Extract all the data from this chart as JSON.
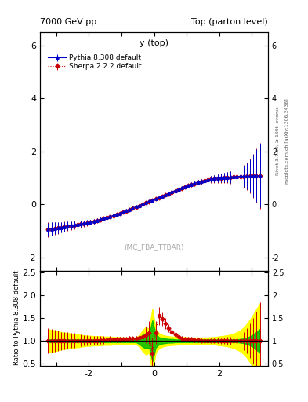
{
  "title_left": "7000 GeV pp",
  "title_right": "Top (parton level)",
  "main_xlabel": "y (top)",
  "ratio_ylabel": "Ratio to Pythia 8.308 default",
  "watermark": "(MC_FBA_TTBAR)",
  "right_label1": "Rivet 3.1.10, ≥ 100k events",
  "right_label2": "mcplots.cern.ch [arXiv:1306.3436]",
  "main_ylim": [
    -2.5,
    6.5
  ],
  "ratio_ylim": [
    0.45,
    2.55
  ],
  "xlim": [
    -3.5,
    3.5
  ],
  "main_yticks": [
    -2,
    0,
    2,
    4,
    6
  ],
  "ratio_yticks": [
    0.5,
    1.0,
    1.5,
    2.0,
    2.5
  ],
  "xticks": [
    -2,
    0,
    2
  ],
  "legend1": "Pythia 8.308 default",
  "legend2": "Sherpa 2.2.2 default",
  "color_pythia": "#0000cc",
  "color_sherpa": "#cc0000",
  "color_green_band": "#00bb00",
  "color_yellow_band": "#ffff00",
  "bg_color": "#ffffff",
  "x_values": [
    -3.25,
    -3.15,
    -3.05,
    -2.95,
    -2.85,
    -2.75,
    -2.65,
    -2.55,
    -2.45,
    -2.35,
    -2.25,
    -2.15,
    -2.05,
    -1.95,
    -1.85,
    -1.75,
    -1.65,
    -1.55,
    -1.45,
    -1.35,
    -1.25,
    -1.15,
    -1.05,
    -0.95,
    -0.85,
    -0.75,
    -0.65,
    -0.55,
    -0.45,
    -0.35,
    -0.25,
    -0.15,
    -0.05,
    0.05,
    0.15,
    0.25,
    0.35,
    0.45,
    0.55,
    0.65,
    0.75,
    0.85,
    0.95,
    1.05,
    1.15,
    1.25,
    1.35,
    1.45,
    1.55,
    1.65,
    1.75,
    1.85,
    1.95,
    2.05,
    2.15,
    2.25,
    2.35,
    2.45,
    2.55,
    2.65,
    2.75,
    2.85,
    2.95,
    3.05,
    3.15,
    3.25
  ],
  "pythia_y": [
    -0.95,
    -0.93,
    -0.91,
    -0.89,
    -0.87,
    -0.85,
    -0.82,
    -0.8,
    -0.78,
    -0.76,
    -0.74,
    -0.72,
    -0.7,
    -0.67,
    -0.64,
    -0.61,
    -0.57,
    -0.53,
    -0.5,
    -0.46,
    -0.42,
    -0.38,
    -0.34,
    -0.29,
    -0.24,
    -0.19,
    -0.14,
    -0.09,
    -0.04,
    0.01,
    0.06,
    0.11,
    0.16,
    0.21,
    0.26,
    0.31,
    0.36,
    0.41,
    0.47,
    0.52,
    0.57,
    0.62,
    0.67,
    0.72,
    0.76,
    0.8,
    0.84,
    0.87,
    0.9,
    0.92,
    0.95,
    0.97,
    0.99,
    1.0,
    1.01,
    1.02,
    1.03,
    1.04,
    1.05,
    1.06,
    1.06,
    1.06,
    1.07,
    1.07,
    1.08,
    1.08
  ],
  "pythia_err": [
    0.25,
    0.24,
    0.22,
    0.2,
    0.18,
    0.17,
    0.16,
    0.15,
    0.14,
    0.13,
    0.12,
    0.11,
    0.1,
    0.09,
    0.09,
    0.08,
    0.08,
    0.07,
    0.07,
    0.06,
    0.06,
    0.06,
    0.05,
    0.05,
    0.05,
    0.05,
    0.04,
    0.04,
    0.04,
    0.04,
    0.04,
    0.04,
    0.04,
    0.04,
    0.04,
    0.04,
    0.04,
    0.05,
    0.05,
    0.05,
    0.06,
    0.06,
    0.06,
    0.07,
    0.07,
    0.08,
    0.08,
    0.09,
    0.1,
    0.11,
    0.12,
    0.13,
    0.14,
    0.16,
    0.17,
    0.19,
    0.21,
    0.24,
    0.28,
    0.33,
    0.4,
    0.5,
    0.62,
    0.8,
    1.0,
    1.2
  ],
  "sherpa_y": [
    -0.95,
    -0.93,
    -0.91,
    -0.89,
    -0.87,
    -0.85,
    -0.83,
    -0.81,
    -0.79,
    -0.77,
    -0.75,
    -0.73,
    -0.71,
    -0.68,
    -0.65,
    -0.62,
    -0.58,
    -0.54,
    -0.51,
    -0.47,
    -0.43,
    -0.39,
    -0.35,
    -0.3,
    -0.25,
    -0.2,
    -0.15,
    -0.1,
    -0.05,
    0.0,
    0.05,
    0.1,
    0.15,
    0.2,
    0.25,
    0.3,
    0.35,
    0.4,
    0.46,
    0.51,
    0.56,
    0.61,
    0.66,
    0.71,
    0.75,
    0.79,
    0.83,
    0.86,
    0.89,
    0.91,
    0.94,
    0.96,
    0.98,
    0.99,
    1.0,
    1.01,
    1.02,
    1.03,
    1.04,
    1.05,
    1.05,
    1.06,
    1.07,
    1.07,
    1.08,
    1.08
  ],
  "sherpa_err": [
    0.28,
    0.26,
    0.24,
    0.22,
    0.2,
    0.19,
    0.18,
    0.17,
    0.16,
    0.14,
    0.13,
    0.12,
    0.11,
    0.1,
    0.09,
    0.09,
    0.08,
    0.08,
    0.07,
    0.07,
    0.06,
    0.06,
    0.06,
    0.05,
    0.05,
    0.05,
    0.04,
    0.04,
    0.04,
    0.04,
    0.04,
    0.04,
    0.04,
    0.04,
    0.04,
    0.04,
    0.05,
    0.05,
    0.05,
    0.06,
    0.06,
    0.06,
    0.07,
    0.07,
    0.08,
    0.09,
    0.09,
    0.1,
    0.11,
    0.12,
    0.13,
    0.14,
    0.16,
    0.17,
    0.19,
    0.21,
    0.23,
    0.26,
    0.3,
    0.36,
    0.43,
    0.52,
    0.65,
    0.82,
    1.02,
    1.25
  ],
  "ratio_y": [
    1.0,
    1.0,
    1.0,
    1.0,
    1.0,
    1.0,
    1.01,
    1.01,
    1.01,
    1.01,
    1.01,
    1.01,
    1.01,
    1.01,
    1.01,
    1.01,
    1.02,
    1.02,
    1.02,
    1.03,
    1.03,
    1.03,
    1.03,
    1.04,
    1.04,
    1.05,
    1.05,
    1.06,
    1.07,
    1.09,
    1.13,
    1.18,
    0.72,
    1.18,
    1.55,
    1.48,
    1.38,
    1.28,
    1.2,
    1.14,
    1.09,
    1.06,
    1.04,
    1.03,
    1.03,
    1.02,
    1.02,
    1.01,
    1.01,
    1.01,
    1.01,
    1.01,
    1.01,
    1.0,
    1.0,
    1.0,
    1.0,
    1.0,
    1.0,
    1.0,
    1.0,
    1.0,
    1.0,
    1.0,
    1.0,
    1.0
  ],
  "ratio_err": [
    0.28,
    0.26,
    0.24,
    0.22,
    0.2,
    0.19,
    0.18,
    0.17,
    0.16,
    0.14,
    0.13,
    0.12,
    0.11,
    0.1,
    0.09,
    0.09,
    0.08,
    0.08,
    0.07,
    0.07,
    0.06,
    0.06,
    0.06,
    0.05,
    0.05,
    0.05,
    0.04,
    0.04,
    0.08,
    0.12,
    0.18,
    0.25,
    0.35,
    0.25,
    0.2,
    0.15,
    0.12,
    0.09,
    0.07,
    0.06,
    0.06,
    0.05,
    0.05,
    0.05,
    0.05,
    0.05,
    0.05,
    0.05,
    0.05,
    0.05,
    0.05,
    0.05,
    0.06,
    0.06,
    0.07,
    0.08,
    0.09,
    0.1,
    0.12,
    0.15,
    0.2,
    0.28,
    0.38,
    0.5,
    0.65,
    0.85
  ],
  "green_band_lo": [
    0.97,
    0.97,
    0.97,
    0.97,
    0.97,
    0.97,
    0.97,
    0.97,
    0.97,
    0.97,
    0.97,
    0.97,
    0.97,
    0.97,
    0.97,
    0.97,
    0.97,
    0.97,
    0.97,
    0.97,
    0.97,
    0.97,
    0.97,
    0.97,
    0.97,
    0.97,
    0.97,
    0.97,
    0.93,
    0.87,
    0.83,
    0.85,
    0.55,
    0.85,
    0.92,
    0.94,
    0.95,
    0.96,
    0.96,
    0.97,
    0.97,
    0.97,
    0.97,
    0.97,
    0.97,
    0.97,
    0.97,
    0.97,
    0.97,
    0.97,
    0.97,
    0.97,
    0.97,
    0.97,
    0.97,
    0.97,
    0.97,
    0.97,
    0.97,
    0.96,
    0.95,
    0.93,
    0.9,
    0.86,
    0.8,
    0.74
  ],
  "green_band_hi": [
    1.03,
    1.03,
    1.03,
    1.03,
    1.03,
    1.03,
    1.03,
    1.03,
    1.03,
    1.03,
    1.03,
    1.03,
    1.03,
    1.03,
    1.03,
    1.03,
    1.03,
    1.03,
    1.03,
    1.03,
    1.03,
    1.03,
    1.03,
    1.03,
    1.03,
    1.03,
    1.03,
    1.03,
    1.07,
    1.13,
    1.17,
    1.15,
    1.45,
    1.15,
    1.08,
    1.06,
    1.05,
    1.04,
    1.04,
    1.03,
    1.03,
    1.03,
    1.03,
    1.03,
    1.03,
    1.03,
    1.03,
    1.03,
    1.03,
    1.03,
    1.03,
    1.03,
    1.03,
    1.03,
    1.03,
    1.03,
    1.03,
    1.03,
    1.03,
    1.04,
    1.05,
    1.07,
    1.1,
    1.14,
    1.2,
    1.26
  ],
  "yellow_band_lo": [
    0.75,
    0.76,
    0.77,
    0.79,
    0.81,
    0.82,
    0.83,
    0.84,
    0.85,
    0.86,
    0.87,
    0.88,
    0.89,
    0.89,
    0.9,
    0.9,
    0.9,
    0.91,
    0.91,
    0.91,
    0.92,
    0.92,
    0.92,
    0.93,
    0.93,
    0.93,
    0.93,
    0.93,
    0.87,
    0.77,
    0.7,
    0.74,
    0.3,
    0.74,
    0.83,
    0.87,
    0.89,
    0.9,
    0.91,
    0.91,
    0.92,
    0.92,
    0.92,
    0.93,
    0.93,
    0.93,
    0.93,
    0.93,
    0.93,
    0.93,
    0.92,
    0.92,
    0.91,
    0.9,
    0.89,
    0.88,
    0.86,
    0.84,
    0.81,
    0.77,
    0.71,
    0.63,
    0.53,
    0.42,
    0.3,
    0.18
  ],
  "yellow_band_hi": [
    1.25,
    1.24,
    1.23,
    1.21,
    1.19,
    1.18,
    1.17,
    1.16,
    1.15,
    1.14,
    1.13,
    1.12,
    1.11,
    1.11,
    1.1,
    1.1,
    1.1,
    1.09,
    1.09,
    1.09,
    1.08,
    1.08,
    1.08,
    1.07,
    1.07,
    1.07,
    1.07,
    1.07,
    1.13,
    1.23,
    1.3,
    1.26,
    1.7,
    1.26,
    1.17,
    1.13,
    1.11,
    1.1,
    1.09,
    1.09,
    1.08,
    1.08,
    1.08,
    1.07,
    1.07,
    1.07,
    1.07,
    1.07,
    1.07,
    1.07,
    1.08,
    1.08,
    1.09,
    1.1,
    1.11,
    1.12,
    1.14,
    1.16,
    1.19,
    1.23,
    1.29,
    1.37,
    1.47,
    1.58,
    1.7,
    1.82
  ]
}
